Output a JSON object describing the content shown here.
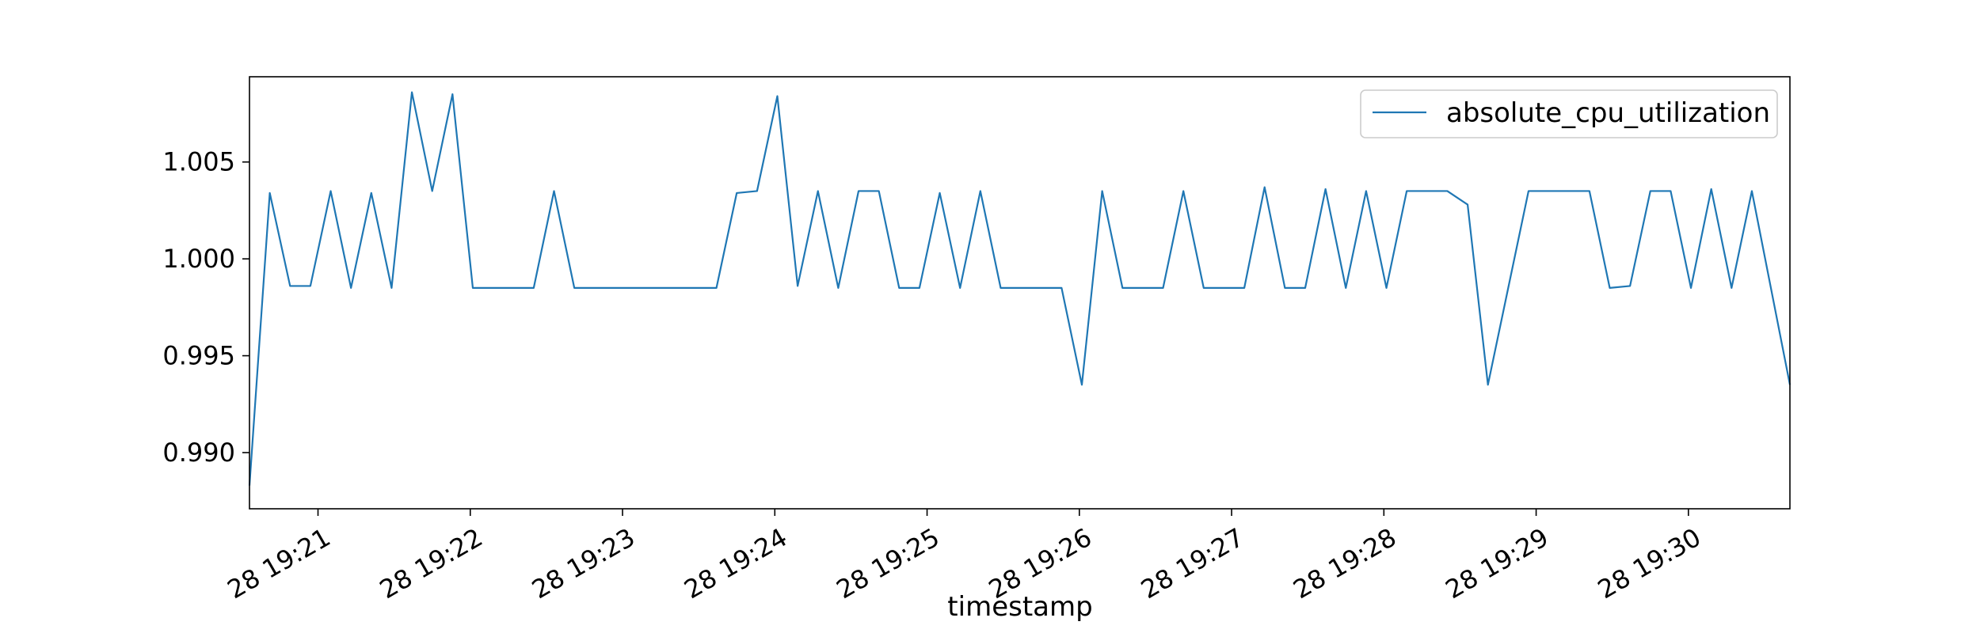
{
  "chart_data": {
    "type": "line",
    "title": "",
    "xlabel": "timestamp",
    "ylabel": "",
    "xlim": [
      "2022-05-28T19:20:33",
      "2022-05-28T19:30:40"
    ],
    "ylim": [
      0.9871,
      1.0094
    ],
    "x_ticks": [
      {
        "value": "2022-05-28T19:21:00",
        "label": "28 19:21"
      },
      {
        "value": "2022-05-28T19:22:00",
        "label": "28 19:22"
      },
      {
        "value": "2022-05-28T19:23:00",
        "label": "28 19:23"
      },
      {
        "value": "2022-05-28T19:24:00",
        "label": "28 19:24"
      },
      {
        "value": "2022-05-28T19:25:00",
        "label": "28 19:25"
      },
      {
        "value": "2022-05-28T19:26:00",
        "label": "28 19:26"
      },
      {
        "value": "2022-05-28T19:27:00",
        "label": "28 19:27"
      },
      {
        "value": "2022-05-28T19:28:00",
        "label": "28 19:28"
      },
      {
        "value": "2022-05-28T19:29:00",
        "label": "28 19:29"
      },
      {
        "value": "2022-05-28T19:30:00",
        "label": "28 19:30"
      }
    ],
    "y_ticks": [
      {
        "value": 0.99,
        "label": "0.990"
      },
      {
        "value": 0.995,
        "label": "0.995"
      },
      {
        "value": 1.0,
        "label": "1.000"
      },
      {
        "value": 1.005,
        "label": "1.005"
      }
    ],
    "grid": false,
    "legend": "top-right",
    "series": [
      {
        "name": "absolute_cpu_utilization",
        "color": "#1f77b4",
        "x": [
          "2022-05-28T19:20:33",
          "2022-05-28T19:20:41",
          "2022-05-28T19:20:49",
          "2022-05-28T19:20:57",
          "2022-05-28T19:21:05",
          "2022-05-28T19:21:13",
          "2022-05-28T19:21:21",
          "2022-05-28T19:21:29",
          "2022-05-28T19:21:37",
          "2022-05-28T19:21:45",
          "2022-05-28T19:21:53",
          "2022-05-28T19:22:01",
          "2022-05-28T19:22:09",
          "2022-05-28T19:22:17",
          "2022-05-28T19:22:25",
          "2022-05-28T19:22:33",
          "2022-05-28T19:22:41",
          "2022-05-28T19:22:49",
          "2022-05-28T19:22:57",
          "2022-05-28T19:23:05",
          "2022-05-28T19:23:13",
          "2022-05-28T19:23:21",
          "2022-05-28T19:23:29",
          "2022-05-28T19:23:37",
          "2022-05-28T19:23:45",
          "2022-05-28T19:23:53",
          "2022-05-28T19:24:01",
          "2022-05-28T19:24:09",
          "2022-05-28T19:24:17",
          "2022-05-28T19:24:25",
          "2022-05-28T19:24:33",
          "2022-05-28T19:24:41",
          "2022-05-28T19:24:49",
          "2022-05-28T19:24:57",
          "2022-05-28T19:25:05",
          "2022-05-28T19:25:13",
          "2022-05-28T19:25:21",
          "2022-05-28T19:25:29",
          "2022-05-28T19:25:37",
          "2022-05-28T19:25:45",
          "2022-05-28T19:25:53",
          "2022-05-28T19:26:01",
          "2022-05-28T19:26:09",
          "2022-05-28T19:26:17",
          "2022-05-28T19:26:25",
          "2022-05-28T19:26:33",
          "2022-05-28T19:26:41",
          "2022-05-28T19:26:49",
          "2022-05-28T19:26:57",
          "2022-05-28T19:27:05",
          "2022-05-28T19:27:13",
          "2022-05-28T19:27:21",
          "2022-05-28T19:27:29",
          "2022-05-28T19:27:37",
          "2022-05-28T19:27:45",
          "2022-05-28T19:27:53",
          "2022-05-28T19:28:01",
          "2022-05-28T19:28:09",
          "2022-05-28T19:28:17",
          "2022-05-28T19:28:25",
          "2022-05-28T19:28:33",
          "2022-05-28T19:28:41",
          "2022-05-28T19:28:49",
          "2022-05-28T19:28:57",
          "2022-05-28T19:29:05",
          "2022-05-28T19:29:13",
          "2022-05-28T19:29:21",
          "2022-05-28T19:29:29",
          "2022-05-28T19:29:37",
          "2022-05-28T19:29:45",
          "2022-05-28T19:29:53",
          "2022-05-28T19:30:01",
          "2022-05-28T19:30:09",
          "2022-05-28T19:30:17",
          "2022-05-28T19:30:25",
          "2022-05-28T19:30:40"
        ],
        "values": [
          0.9883,
          1.0034,
          0.9986,
          0.9986,
          1.0035,
          0.9985,
          1.0034,
          0.9985,
          1.0086,
          1.0035,
          1.0085,
          0.9985,
          0.9985,
          0.9985,
          0.9985,
          1.0035,
          0.9985,
          0.9985,
          0.9985,
          0.9985,
          0.9985,
          0.9985,
          0.9985,
          0.9985,
          1.0034,
          1.0035,
          1.0084,
          0.9986,
          1.0035,
          0.9985,
          1.0035,
          1.0035,
          0.9985,
          0.9985,
          1.0034,
          0.9985,
          1.0035,
          0.9985,
          0.9985,
          0.9985,
          0.9985,
          0.9935,
          1.0035,
          0.9985,
          0.9985,
          0.9985,
          1.0035,
          0.9985,
          0.9985,
          0.9985,
          1.0037,
          0.9985,
          0.9985,
          1.0036,
          0.9985,
          1.0035,
          0.9985,
          1.0035,
          1.0035,
          1.0035,
          1.0028,
          0.9935,
          0.9985,
          1.0035,
          1.0035,
          1.0035,
          1.0035,
          0.9985,
          0.9986,
          1.0035,
          1.0035,
          0.9985,
          1.0036,
          0.9985,
          1.0035,
          0.9935
        ]
      }
    ]
  }
}
